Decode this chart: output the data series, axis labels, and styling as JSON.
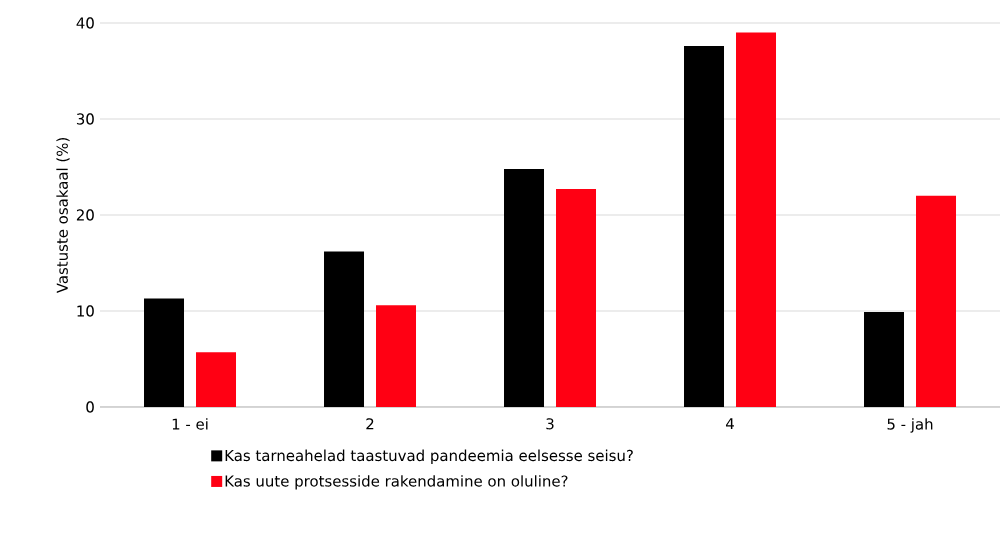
{
  "chart_data": {
    "type": "bar",
    "ylabel": "Vastuste osakaal (%)",
    "categories": [
      "1 - ei",
      "2",
      "3",
      "4",
      "5 - jah"
    ],
    "series": [
      {
        "name": "Kas tarneahelad taastuvad pandeemia eelsesse seisu?",
        "color": "#000000",
        "values": [
          11.3,
          16.2,
          24.8,
          37.6,
          9.9
        ]
      },
      {
        "name": "Kas uute protsesside rakendamine on oluline?",
        "color": "#ff0013",
        "values": [
          5.7,
          10.6,
          22.7,
          39.0,
          22.0
        ]
      }
    ],
    "ylim": [
      0,
      40
    ],
    "yticks": [
      0,
      10,
      20,
      30,
      40
    ],
    "grid": "y",
    "legend": "bottom"
  }
}
